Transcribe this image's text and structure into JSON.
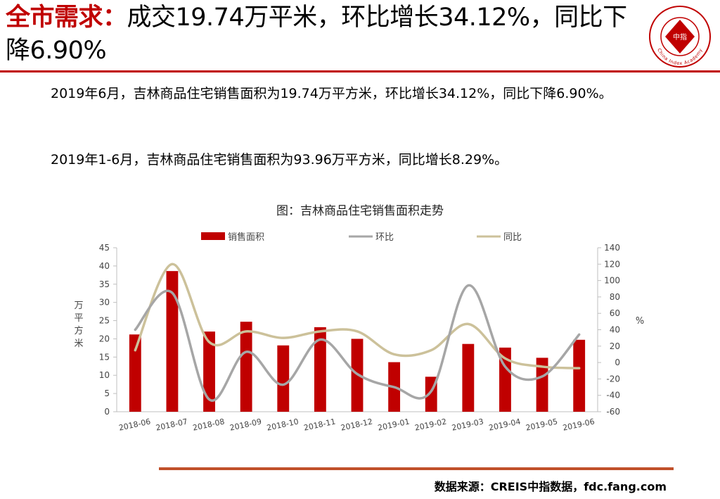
{
  "header": {
    "title_highlight": "全市需求：",
    "title_rest": "成交19.74万平米，环比增长34.12%，同比下降6.90%"
  },
  "logo": {
    "label": "China Index Academy",
    "center_text": "中指",
    "color": "#c00000"
  },
  "body": {
    "paragraph1": "2019年6月，吉林商品住宅销售面积为19.74万平方米，环比增长34.12%，同比下降6.90%。",
    "paragraph2": "2019年1-6月，吉林商品住宅销售面积为93.96万平方米，同比增长8.29%。"
  },
  "chart_data": {
    "type": "bar",
    "title": "图：吉林商品住宅销售面积走势",
    "categories": [
      "2018-06",
      "2018-07",
      "2018-08",
      "2018-09",
      "2018-10",
      "2018-11",
      "2018-12",
      "2019-01",
      "2019-02",
      "2019-03",
      "2019-04",
      "2019-05",
      "2019-06"
    ],
    "series": [
      {
        "name": "销售面积",
        "type": "bar",
        "axis": "left",
        "color": "#c00000",
        "values": [
          21.2,
          38.6,
          22.0,
          24.7,
          18.2,
          23.2,
          20.0,
          13.6,
          9.6,
          18.6,
          17.6,
          14.8,
          19.74
        ]
      },
      {
        "name": "环比",
        "type": "line",
        "axis": "right",
        "color": "#a6a6a6",
        "values": [
          40,
          85,
          -45,
          13,
          -27,
          28,
          -14,
          -30,
          -35,
          94,
          -5,
          -17,
          34.12
        ]
      },
      {
        "name": "同比",
        "type": "line",
        "axis": "right",
        "color": "#ccc19a",
        "values": [
          15,
          120,
          25,
          38,
          30,
          38,
          38,
          10,
          15,
          47,
          5,
          -5,
          -6.9
        ]
      }
    ],
    "ylabel_left": "万平方米",
    "ylabel_right": "%",
    "ylim_left": [
      0,
      45
    ],
    "ylim_right": [
      -60,
      140
    ],
    "yticks_left": [
      0,
      5,
      10,
      15,
      20,
      25,
      30,
      35,
      40,
      45
    ],
    "yticks_right": [
      -60,
      -40,
      -20,
      0,
      20,
      40,
      60,
      80,
      100,
      120,
      140
    ],
    "legend_position": "top",
    "grid": false
  },
  "footer": {
    "source": "数据来源：CREIS中指数据，fdc.fang.com"
  }
}
